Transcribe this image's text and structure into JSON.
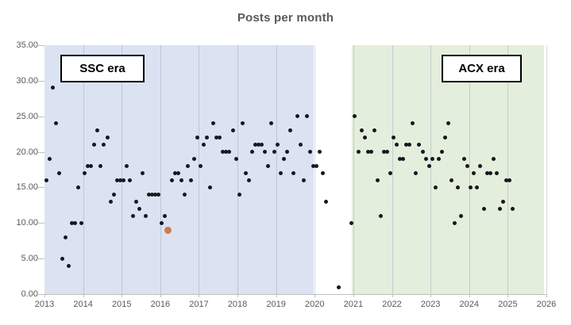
{
  "title": "Posts per month",
  "eras": [
    {
      "label": "SSC era",
      "x_start": 2013.0,
      "x_end": 2019.97,
      "fill": "#dbe3f2"
    },
    {
      "label": "ACX era",
      "x_start": 2020.96,
      "x_end": 2025.94,
      "fill": "#e4eedd"
    }
  ],
  "chart_data": {
    "type": "scatter",
    "title": "Posts per month",
    "xlabel": "",
    "ylabel": "",
    "xlim": [
      2013,
      2026
    ],
    "ylim": [
      0,
      35
    ],
    "x_tick_labels": [
      "2013",
      "2014",
      "2015",
      "2016",
      "2017",
      "2018",
      "2019",
      "2020",
      "2021",
      "2022",
      "2023",
      "2024",
      "2025",
      "2026"
    ],
    "y_tick_labels": [
      "0.00",
      "5.00",
      "10.00",
      "15.00",
      "20.00",
      "25.00",
      "30.00",
      "35.00"
    ],
    "grid": "vertical-yearly",
    "point_color": "#15181f",
    "highlight_point": {
      "year": 2016,
      "month": 3,
      "value": 9,
      "color": "#cc7b4c"
    },
    "monthly_values": {
      "2013": [
        16,
        19,
        29,
        24,
        17,
        5,
        8,
        4,
        10,
        10,
        15,
        10
      ],
      "2014": [
        17,
        18,
        18,
        21,
        23,
        18,
        21,
        22,
        13,
        14,
        16,
        16
      ],
      "2015": [
        16,
        18,
        16,
        11,
        13,
        12,
        17,
        11,
        14,
        14,
        14,
        14
      ],
      "2016": [
        10,
        11,
        9,
        16,
        17,
        17,
        16,
        14,
        18,
        16,
        19,
        22
      ],
      "2017": [
        18,
        21,
        22,
        15,
        24,
        22,
        22,
        20,
        20,
        20,
        23,
        19
      ],
      "2018": [
        14,
        24,
        17,
        16,
        20,
        21,
        21,
        21,
        20,
        18,
        24,
        20
      ],
      "2019": [
        21,
        17,
        19,
        20,
        23,
        17,
        25,
        21,
        16,
        25,
        20,
        18
      ],
      "2020": [
        18,
        20,
        17,
        13,
        null,
        null,
        null,
        1,
        null,
        null,
        null,
        10
      ],
      "2021": [
        25,
        20,
        23,
        22,
        20,
        20,
        23,
        16,
        11,
        20,
        20,
        17
      ],
      "2022": [
        22,
        21,
        19,
        19,
        21,
        21,
        24,
        17,
        21,
        20,
        19,
        18
      ],
      "2023": [
        19,
        15,
        19,
        20,
        22,
        24,
        16,
        10,
        15,
        11,
        19,
        18
      ],
      "2024": [
        15,
        17,
        15,
        18,
        12,
        17,
        17,
        19,
        17,
        12,
        13,
        16
      ],
      "2025": [
        16,
        12
      ]
    }
  }
}
